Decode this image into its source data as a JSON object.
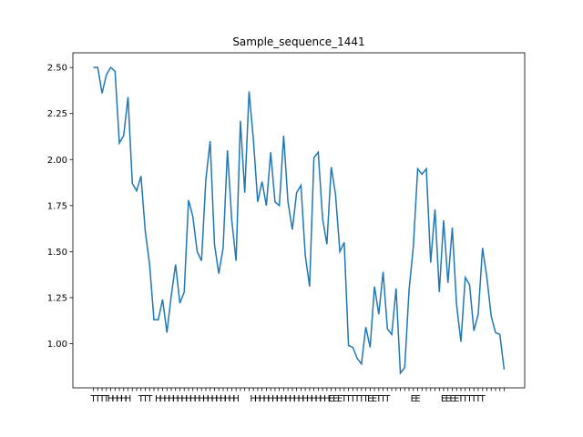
{
  "chart_data": {
    "type": "line",
    "title": "Sample_sequence_1441",
    "color": "#1f77b4",
    "categories": [
      "T",
      "T",
      "T",
      "T",
      "H",
      "H",
      "H",
      "H",
      "H",
      null,
      null,
      "T",
      "T",
      "T",
      null,
      "H",
      "H",
      "H",
      "H",
      "H",
      "H",
      "H",
      "H",
      "H",
      "H",
      "H",
      "H",
      "H",
      "H",
      "H",
      "H",
      "H",
      "H",
      "H",
      null,
      null,
      null,
      "H",
      "H",
      "H",
      "H",
      "H",
      "H",
      "H",
      "H",
      "H",
      "H",
      "H",
      "H",
      "H",
      "H",
      "H",
      "H",
      "H",
      "H",
      "E",
      "E",
      "E",
      "T",
      "T",
      "T",
      "T",
      "T",
      "T",
      "E",
      "E",
      "T",
      "T",
      "T",
      null,
      null,
      null,
      null,
      null,
      "E",
      "E",
      null,
      null,
      null,
      null,
      null,
      "E",
      "E",
      "E",
      "E",
      "T",
      "T",
      "T",
      "T",
      "T",
      "T",
      null,
      null,
      null,
      null,
      null
    ],
    "values": [
      2.5,
      2.5,
      2.36,
      2.46,
      2.5,
      2.48,
      2.09,
      2.13,
      2.34,
      1.87,
      1.83,
      1.91,
      1.61,
      1.43,
      1.13,
      1.13,
      1.24,
      1.06,
      1.26,
      1.43,
      1.22,
      1.28,
      1.78,
      1.69,
      1.5,
      1.45,
      1.89,
      2.1,
      1.54,
      1.38,
      1.52,
      2.05,
      1.67,
      1.45,
      2.21,
      1.82,
      2.37,
      2.11,
      1.77,
      1.88,
      1.75,
      2.04,
      1.77,
      1.75,
      2.13,
      1.77,
      1.62,
      1.82,
      1.86,
      1.48,
      1.31,
      2.01,
      2.04,
      1.68,
      1.54,
      1.96,
      1.81,
      1.5,
      1.55,
      0.99,
      0.98,
      0.92,
      0.89,
      1.09,
      0.98,
      1.31,
      1.16,
      1.39,
      1.08,
      1.05,
      1.3,
      0.84,
      0.87,
      1.29,
      1.53,
      1.95,
      1.92,
      1.95,
      1.44,
      1.73,
      1.28,
      1.67,
      1.33,
      1.63,
      1.21,
      1.01,
      1.36,
      1.32,
      1.07,
      1.16,
      1.52,
      1.36,
      1.15,
      1.06,
      1.05,
      0.86
    ],
    "ylim": [
      0.76,
      2.58
    ],
    "yticks": [
      {
        "value": 1,
        "label": "1.00"
      },
      {
        "value": 1.25,
        "label": "1.25"
      },
      {
        "value": 1.5,
        "label": "1.50"
      },
      {
        "value": 1.75,
        "label": "1.75"
      },
      {
        "value": 2,
        "label": "2.00"
      },
      {
        "value": 2.25,
        "label": "2.25"
      },
      {
        "value": 2.5,
        "label": "2.50"
      }
    ]
  }
}
